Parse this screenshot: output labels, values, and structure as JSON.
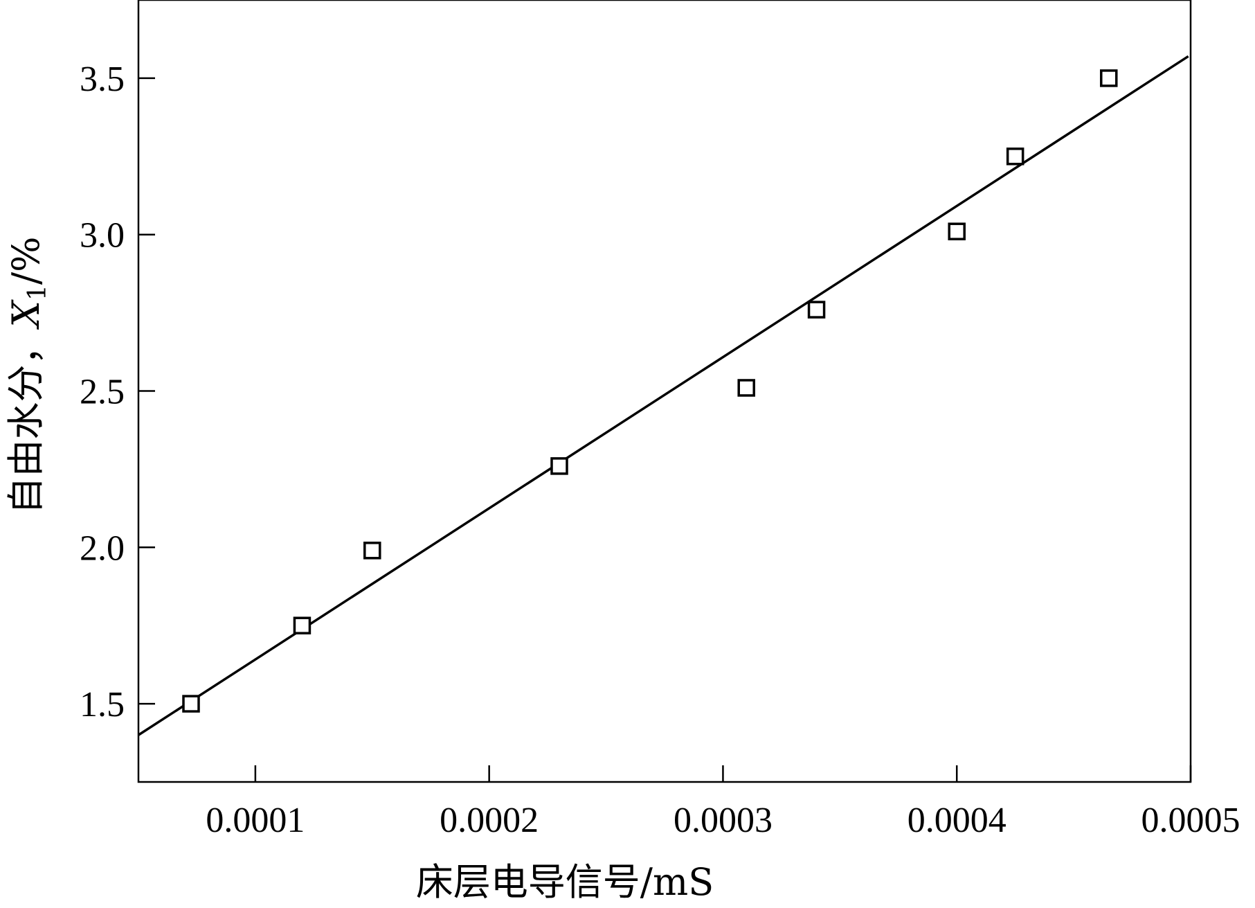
{
  "chart_data": {
    "type": "scatter",
    "title": "",
    "xlabel": "床层电导信号/mS",
    "ylabel": {
      "prefix": "自由水分，",
      "var": "X",
      "sub": "1",
      "suffix": "/%"
    },
    "xlim": [
      5e-05,
      0.0005
    ],
    "ylim": [
      1.25,
      3.75
    ],
    "x_ticks": [
      0.0001,
      0.0002,
      0.0003,
      0.0004,
      0.0005
    ],
    "x_tick_labels": [
      "0.0001",
      "0.0002",
      "0.0003",
      "0.0004",
      "0.0005"
    ],
    "y_ticks": [
      1.5,
      2.0,
      2.5,
      3.0,
      3.5
    ],
    "y_tick_labels": [
      "1.5",
      "2.0",
      "2.5",
      "3.0",
      "3.5"
    ],
    "grid": false,
    "legend": "none",
    "points": [
      {
        "x": 7.25e-05,
        "y": 1.5
      },
      {
        "x": 0.00012,
        "y": 1.75
      },
      {
        "x": 0.00015,
        "y": 1.99
      },
      {
        "x": 0.00023,
        "y": 2.26
      },
      {
        "x": 0.00031,
        "y": 2.51
      },
      {
        "x": 0.00034,
        "y": 2.76
      },
      {
        "x": 0.0004,
        "y": 3.01
      },
      {
        "x": 0.000425,
        "y": 3.25
      },
      {
        "x": 0.000465,
        "y": 3.5
      }
    ],
    "fit_line": {
      "x": [
        5e-05,
        0.000499
      ],
      "y": [
        1.4,
        3.57
      ]
    },
    "marker": "open-square",
    "color": "#000000"
  }
}
